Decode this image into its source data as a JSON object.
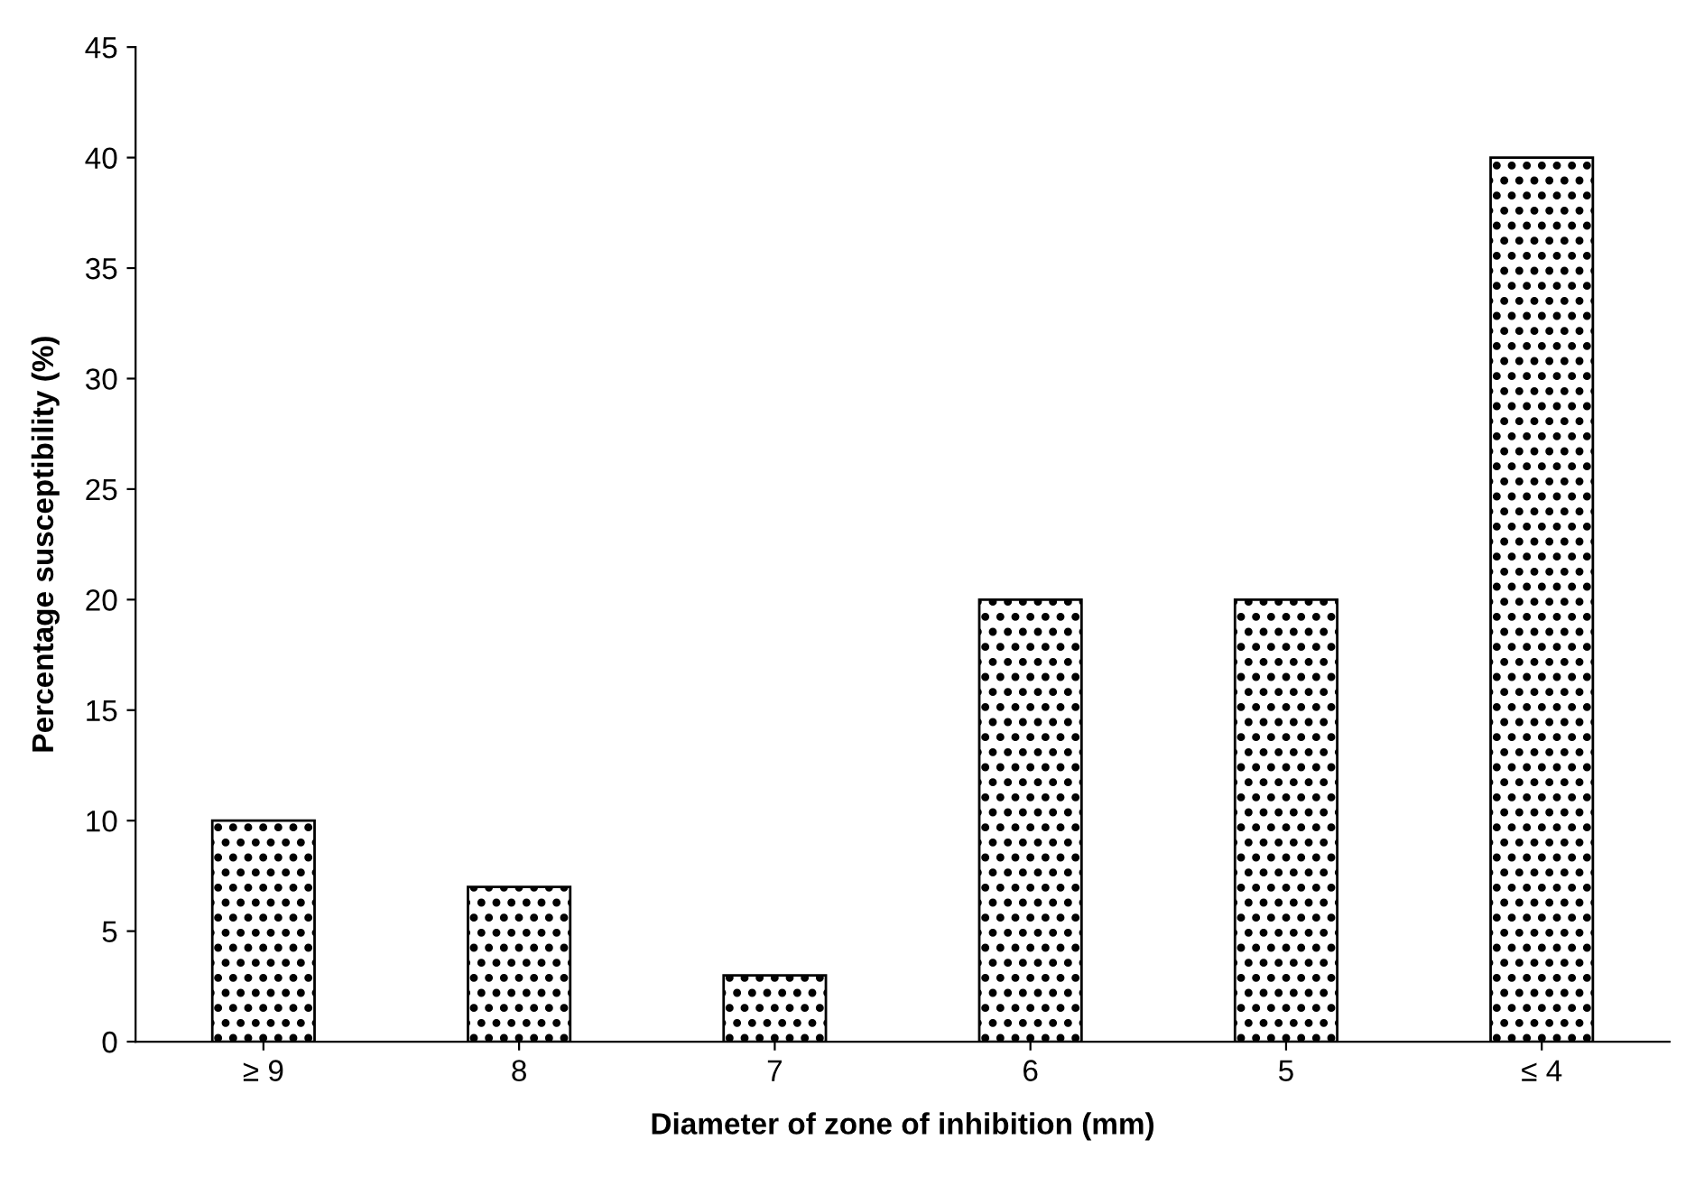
{
  "chart_data": {
    "type": "bar",
    "xlabel": "Diameter of zone of inhibition (mm)",
    "ylabel": "Percentage susceptibility (%)",
    "categories": [
      "≥ 9",
      "8",
      "7",
      "6",
      "5",
      "≤ 4"
    ],
    "values": [
      10,
      7,
      3,
      20,
      20,
      40
    ],
    "color": "#000000",
    "ylim": [
      0,
      45
    ],
    "yticks": [
      0,
      5,
      10,
      15,
      20,
      25,
      30,
      35,
      40,
      45
    ],
    "grid": false,
    "legend": false
  }
}
